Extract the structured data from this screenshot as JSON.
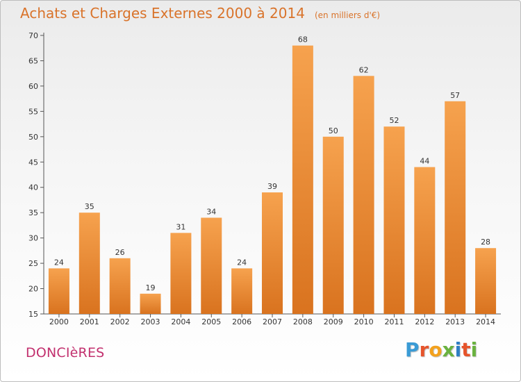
{
  "title": "Achats et Charges Externes 2000 à 2014",
  "unit": "(en milliers d'€)",
  "commune": "DONCIèRES",
  "brand": {
    "letters": [
      {
        "char": "P",
        "color": "#3a9bd5"
      },
      {
        "char": "r",
        "color": "#e6542b"
      },
      {
        "char": "o",
        "color": "#f3a11d"
      },
      {
        "char": "x",
        "color": "#6ab23f"
      },
      {
        "char": "i",
        "color": "#2f7fc4"
      },
      {
        "char": "t",
        "color": "#e6542b"
      },
      {
        "char": "i",
        "color": "#6ab23f"
      }
    ]
  },
  "chart_data": {
    "type": "bar",
    "title": "Achats et Charges Externes 2000 à 2014",
    "subtitle": "(en milliers d'€)",
    "categories": [
      "2000",
      "2001",
      "2002",
      "2003",
      "2004",
      "2005",
      "2006",
      "2007",
      "2008",
      "2009",
      "2010",
      "2011",
      "2012",
      "2013",
      "2014"
    ],
    "values": [
      24,
      35,
      26,
      19,
      31,
      34,
      24,
      39,
      68,
      50,
      62,
      52,
      44,
      57,
      28
    ],
    "ylim": [
      15,
      70
    ],
    "yticks": [
      15,
      20,
      25,
      30,
      35,
      40,
      45,
      50,
      55,
      60,
      65,
      70
    ],
    "grid": false,
    "bar_color_top": "#f6a24e",
    "bar_color_bottom": "#d9731f"
  }
}
